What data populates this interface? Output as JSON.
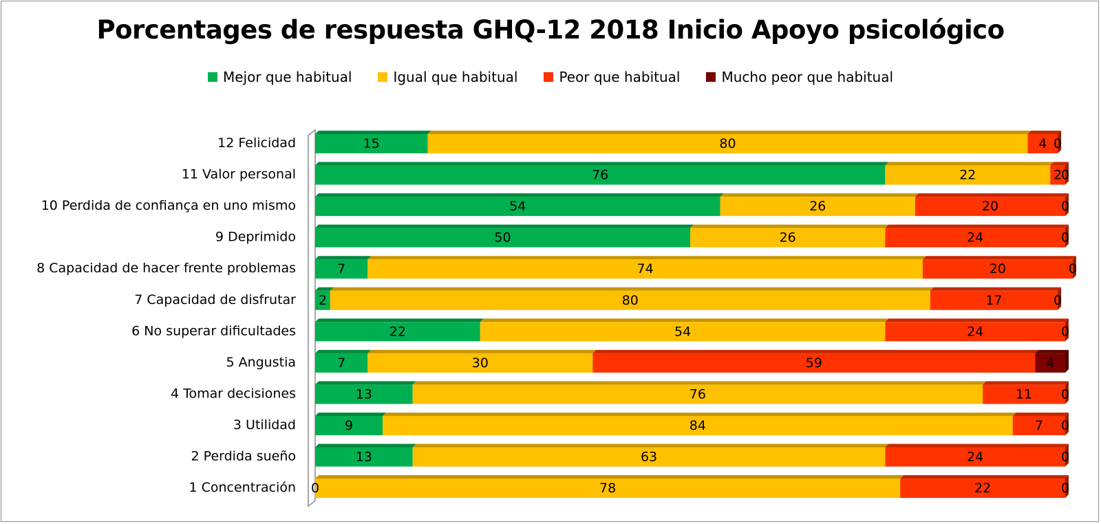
{
  "chart_data": {
    "type": "bar",
    "orientation": "horizontal",
    "stacked": true,
    "title": "Porcentages de respuesta GHQ-12  2018 Inicio Apoyo psicológico",
    "xlim": [
      0,
      100
    ],
    "legend_position": "top",
    "grid": false,
    "categories": [
      "12 Felicidad",
      "11 Valor personal",
      "10 Perdida de confiança en uno mismo",
      "9 Deprimido",
      "8 Capacidad de hacer frente problemas",
      "7 Capacidad de disfrutar",
      "6 No superar dificultades",
      "5 Angustia",
      "4 Tomar decisiones",
      "3 Utilidad",
      "2 Perdida sueño",
      "1 Concentración"
    ],
    "series": [
      {
        "name": "Mejor que habitual",
        "color": "#00b050",
        "values": [
          15,
          76,
          54,
          50,
          7,
          2,
          22,
          7,
          13,
          9,
          13,
          0
        ]
      },
      {
        "name": "Igual que habitual",
        "color": "#ffc000",
        "values": [
          80,
          22,
          26,
          26,
          74,
          80,
          54,
          30,
          76,
          84,
          63,
          78
        ]
      },
      {
        "name": "Peor que habitual",
        "color": "#ff3300",
        "values": [
          4,
          2,
          20,
          24,
          20,
          17,
          24,
          59,
          11,
          7,
          24,
          22
        ]
      },
      {
        "name": "Mucho peor que habitual",
        "color": "#7b0000",
        "values": [
          0,
          0,
          0,
          0,
          0,
          0,
          0,
          4,
          0,
          0,
          0,
          0
        ]
      }
    ]
  }
}
